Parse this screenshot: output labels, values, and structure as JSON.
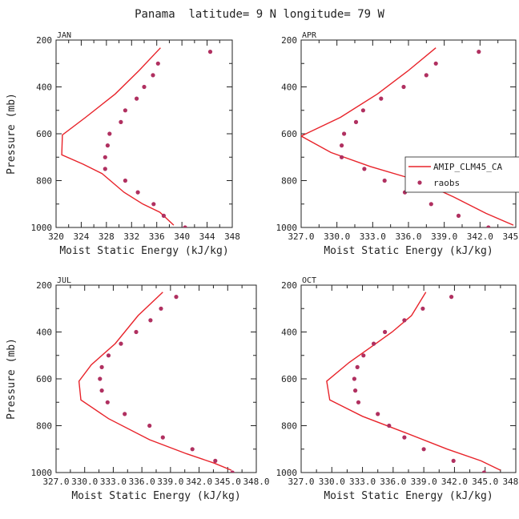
{
  "figure_title": "Panama  latitude= 9 N longitude= 79 W",
  "colors": {
    "model": "#e8232a",
    "obs": "#b03060",
    "axis": "#222222"
  },
  "legend": {
    "model_label": "AMIP_CLM45_CA",
    "obs_label": "raobs",
    "panel": "APR"
  },
  "chart_data": [
    {
      "type": "line",
      "title": "JAN",
      "xlabel": "Moist Static Energy (kJ/kg)",
      "ylabel": "Pressure (mb)",
      "xlim": [
        320,
        348
      ],
      "ylim": [
        1000,
        200
      ],
      "xticks": [
        320,
        324,
        328,
        332,
        336,
        340,
        344,
        348
      ],
      "xticklabels": [
        "320",
        "324",
        "328",
        "332",
        "336",
        "340",
        "344",
        "348"
      ],
      "yticks": [
        200,
        400,
        600,
        800,
        1000
      ],
      "yticklabels": [
        "200",
        "400",
        "600",
        "800",
        "1000"
      ],
      "series": [
        {
          "name": "AMIP_CLM45_CA",
          "kind": "line",
          "x": [
            336.6,
            333.2,
            329.4,
            324.7,
            321.0,
            320.9,
            324.3,
            327.3,
            330.8,
            333.8,
            336.5,
            338.7
          ],
          "y": [
            233,
            330,
            430,
            530,
            605,
            690,
            730,
            770,
            850,
            900,
            935,
            990
          ]
        },
        {
          "name": "raobs",
          "kind": "scatter",
          "x": [
            344.5,
            336.2,
            335.4,
            334.0,
            332.8,
            331.0,
            330.3,
            328.5,
            328.2,
            327.8,
            327.8,
            331.0,
            333.0,
            335.5,
            337.1,
            340.5
          ],
          "y": [
            250,
            300,
            350,
            400,
            450,
            500,
            550,
            600,
            650,
            700,
            750,
            800,
            850,
            900,
            950,
            1000
          ]
        }
      ]
    },
    {
      "type": "line",
      "title": "APR",
      "xlabel": "Moist Static Energy (kJ/kg)",
      "ylabel": "",
      "xlim": [
        327,
        345
      ],
      "ylim": [
        1000,
        200
      ],
      "xticks": [
        327,
        330,
        333,
        336,
        339,
        342,
        345
      ],
      "xticklabels": [
        "327.0",
        "330.0",
        "333.0",
        "336.0",
        "339.0",
        "342.0",
        "345.0"
      ],
      "yticks": [
        200,
        400,
        600,
        800,
        1000
      ],
      "yticklabels": [
        "200",
        "400",
        "600",
        "800",
        "1000"
      ],
      "series": [
        {
          "name": "AMIP_CLM45_CA",
          "kind": "line",
          "x": [
            338.3,
            336.0,
            333.4,
            330.3,
            327.0,
            329.5,
            332.8,
            336.8,
            339.8,
            342.5,
            344.8
          ],
          "y": [
            233,
            330,
            430,
            530,
            610,
            680,
            740,
            800,
            870,
            940,
            990
          ]
        },
        {
          "name": "raobs",
          "kind": "scatter",
          "x": [
            341.9,
            338.3,
            337.5,
            335.6,
            333.7,
            332.2,
            331.6,
            330.6,
            330.4,
            330.4,
            332.3,
            334.0,
            335.7,
            337.9,
            340.2,
            342.7
          ],
          "y": [
            250,
            300,
            350,
            400,
            450,
            500,
            550,
            600,
            650,
            700,
            750,
            800,
            850,
            900,
            950,
            1000
          ]
        }
      ]
    },
    {
      "type": "line",
      "title": "JUL",
      "xlabel": "Moist Static Energy (kJ/kg)",
      "ylabel": "Pressure (mb)",
      "xlim": [
        327,
        348
      ],
      "ylim": [
        1000,
        200
      ],
      "xticks": [
        327,
        330,
        333,
        336,
        339,
        342,
        345,
        348
      ],
      "xticklabels": [
        "327.0",
        "330.0",
        "333.0",
        "336.0",
        "339.0",
        "342.0",
        "345.0",
        "348.0"
      ],
      "yticks": [
        200,
        400,
        600,
        800,
        1000
      ],
      "yticklabels": [
        "200",
        "400",
        "600",
        "800",
        "1000"
      ],
      "series": [
        {
          "name": "AMIP_CLM45_CA",
          "kind": "line",
          "x": [
            338.2,
            335.6,
            333.2,
            330.7,
            329.4,
            329.6,
            332.5,
            336.8,
            340.7,
            343.6,
            345.4
          ],
          "y": [
            230,
            330,
            450,
            540,
            610,
            690,
            770,
            860,
            920,
            960,
            990
          ]
        },
        {
          "name": "raobs",
          "kind": "scatter",
          "x": [
            339.6,
            338.0,
            336.9,
            335.4,
            333.8,
            332.5,
            331.8,
            331.6,
            331.8,
            332.4,
            334.2,
            336.8,
            338.2,
            341.3,
            343.7,
            345.5
          ],
          "y": [
            250,
            300,
            350,
            400,
            450,
            500,
            550,
            600,
            650,
            700,
            750,
            800,
            850,
            900,
            950,
            1000
          ]
        }
      ]
    },
    {
      "type": "line",
      "title": "OCT",
      "xlabel": "Moist Static Energy (kJ/kg)",
      "ylabel": "",
      "xlim": [
        327,
        348
      ],
      "ylim": [
        1000,
        200
      ],
      "xticks": [
        327,
        330,
        333,
        336,
        339,
        342,
        345,
        348
      ],
      "xticklabels": [
        "327.0",
        "330.0",
        "333.0",
        "336.0",
        "339.0",
        "342.0",
        "345.0",
        "348.0"
      ],
      "yticks": [
        200,
        400,
        600,
        800,
        1000
      ],
      "yticklabels": [
        "200",
        "400",
        "600",
        "800",
        "1000"
      ],
      "series": [
        {
          "name": "AMIP_CLM45_CA",
          "kind": "line",
          "x": [
            339.2,
            337.8,
            335.9,
            334.3,
            331.7,
            329.5,
            329.8,
            333.0,
            337.2,
            341.3,
            344.6,
            346.5
          ],
          "y": [
            230,
            330,
            400,
            450,
            530,
            610,
            690,
            760,
            830,
            900,
            950,
            990
          ]
        },
        {
          "name": "raobs",
          "kind": "scatter",
          "x": [
            341.7,
            338.9,
            337.1,
            335.2,
            334.1,
            333.1,
            332.5,
            332.2,
            332.3,
            332.6,
            334.5,
            335.6,
            337.1,
            339.0,
            341.9,
            344.9
          ],
          "y": [
            250,
            300,
            350,
            400,
            450,
            500,
            550,
            600,
            650,
            700,
            750,
            800,
            850,
            900,
            950,
            1000
          ]
        }
      ]
    }
  ]
}
